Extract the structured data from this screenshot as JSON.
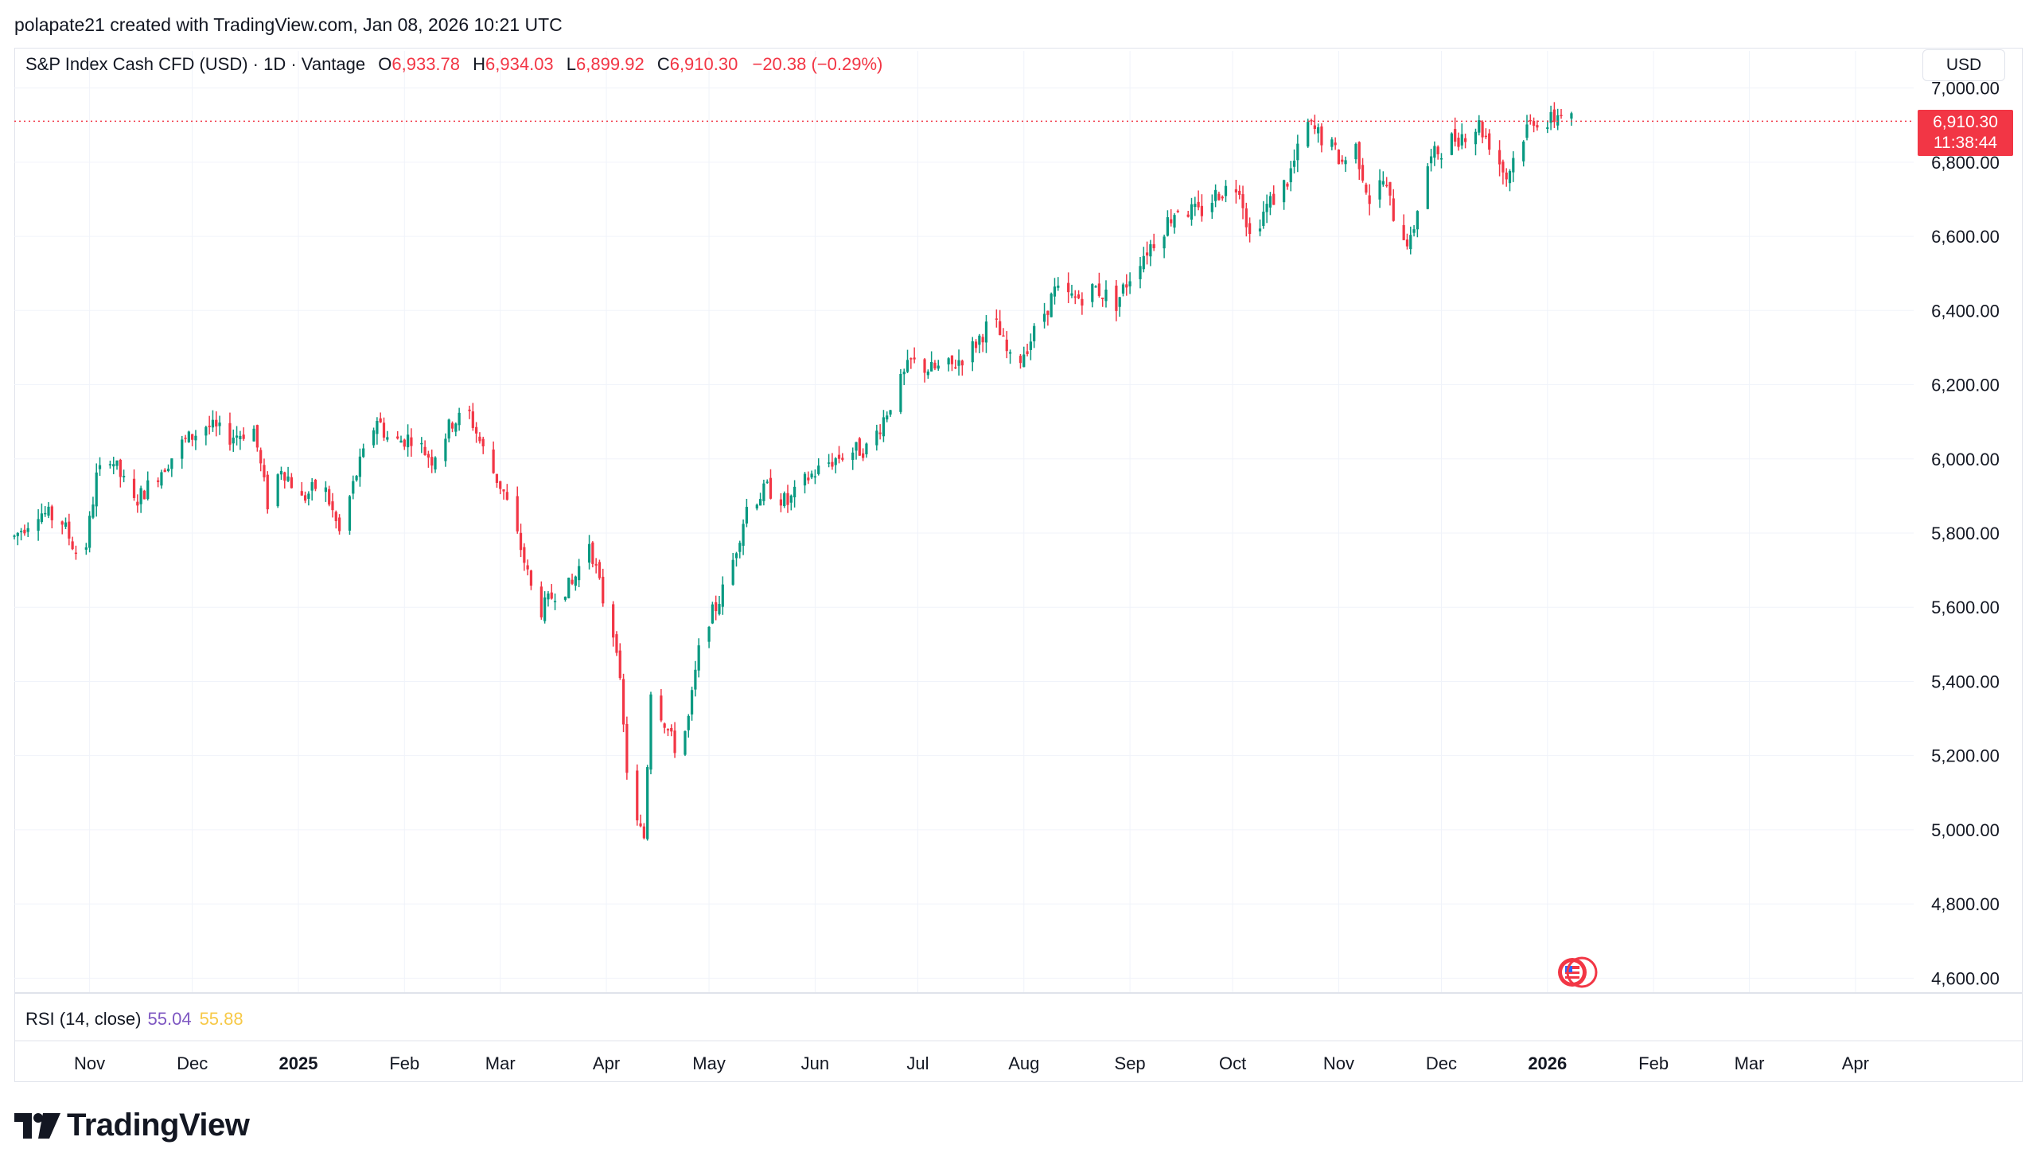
{
  "caption": "polapate21 created with TradingView.com, Jan 08, 2026 10:21 UTC",
  "legend": {
    "symbol": "S&P Index Cash CFD (USD) · 1D · Vantage",
    "open_label": "O",
    "open": "6,933.78",
    "high_label": "H",
    "high": "6,934.03",
    "low_label": "L",
    "low": "6,899.92",
    "close_label": "C",
    "close": "6,910.30",
    "change": "−20.38 (−0.29%)"
  },
  "currency": "USD",
  "last_price": {
    "price": "6,910.30",
    "countdown": "11:38:44"
  },
  "rsi": {
    "label": "RSI (14, close)",
    "value1": "55.04",
    "value2": "55.88"
  },
  "brand": "TradingView",
  "colors": {
    "up": "#089981",
    "down": "#f23645",
    "grid": "#f0f3fa",
    "text": "#131722"
  },
  "chart_data": {
    "type": "candlestick",
    "y_axis": {
      "min": 4560,
      "max": 7100,
      "ticks": [
        7000,
        6800,
        6600,
        6400,
        6200,
        6000,
        5800,
        5600,
        5400,
        5200,
        5000,
        4800,
        4600
      ],
      "tick_labels": [
        "7,000.00",
        "6,800.00",
        "6,600.00",
        "6,400.00",
        "6,200.00",
        "6,000.00",
        "5,800.00",
        "5,600.00",
        "5,400.00",
        "5,200.00",
        "5,000.00",
        "4,800.00",
        "4,600.00"
      ]
    },
    "x_axis": {
      "labels": [
        {
          "text": "Nov",
          "bold": false,
          "day": 22
        },
        {
          "text": "Dec",
          "bold": false,
          "day": 52
        },
        {
          "text": "2025",
          "bold": true,
          "day": 83
        },
        {
          "text": "Feb",
          "bold": false,
          "day": 114
        },
        {
          "text": "Mar",
          "bold": false,
          "day": 142
        },
        {
          "text": "Apr",
          "bold": false,
          "day": 173
        },
        {
          "text": "May",
          "bold": false,
          "day": 203
        },
        {
          "text": "Jun",
          "bold": false,
          "day": 234
        },
        {
          "text": "Jul",
          "bold": false,
          "day": 264
        },
        {
          "text": "Aug",
          "bold": false,
          "day": 295
        },
        {
          "text": "Sep",
          "bold": false,
          "day": 326
        },
        {
          "text": "Oct",
          "bold": false,
          "day": 356
        },
        {
          "text": "Nov",
          "bold": false,
          "day": 387
        },
        {
          "text": "Dec",
          "bold": false,
          "day": 417
        },
        {
          "text": "2026",
          "bold": true,
          "day": 448
        },
        {
          "text": "Feb",
          "bold": false,
          "day": 479
        },
        {
          "text": "Mar",
          "bold": false,
          "day": 507
        },
        {
          "text": "Apr",
          "bold": false,
          "day": 538
        }
      ]
    },
    "closes": [
      {
        "day": 0,
        "close": 5790
      },
      {
        "day": 7,
        "close": 5860
      },
      {
        "day": 14,
        "close": 5830
      },
      {
        "day": 20,
        "close": 5710
      },
      {
        "day": 24,
        "close": 5950
      },
      {
        "day": 28,
        "close": 6010
      },
      {
        "day": 35,
        "close": 5880
      },
      {
        "day": 42,
        "close": 5960
      },
      {
        "day": 49,
        "close": 6040
      },
      {
        "day": 56,
        "close": 6090
      },
      {
        "day": 63,
        "close": 6060
      },
      {
        "day": 70,
        "close": 6080
      },
      {
        "day": 74,
        "close": 5880
      },
      {
        "day": 78,
        "close": 5980
      },
      {
        "day": 84,
        "close": 5890
      },
      {
        "day": 90,
        "close": 5940
      },
      {
        "day": 95,
        "close": 5800
      },
      {
        "day": 100,
        "close": 5960
      },
      {
        "day": 106,
        "close": 6110
      },
      {
        "day": 110,
        "close": 6040
      },
      {
        "day": 116,
        "close": 6060
      },
      {
        "day": 122,
        "close": 6000
      },
      {
        "day": 128,
        "close": 6100
      },
      {
        "day": 133,
        "close": 6120
      },
      {
        "day": 138,
        "close": 6000
      },
      {
        "day": 143,
        "close": 5910
      },
      {
        "day": 148,
        "close": 5760
      },
      {
        "day": 153,
        "close": 5580
      },
      {
        "day": 158,
        "close": 5640
      },
      {
        "day": 163,
        "close": 5660
      },
      {
        "day": 168,
        "close": 5780
      },
      {
        "day": 172,
        "close": 5620
      },
      {
        "day": 176,
        "close": 5500
      },
      {
        "day": 180,
        "close": 5050
      },
      {
        "day": 184,
        "close": 4980
      },
      {
        "day": 186,
        "close": 5380
      },
      {
        "day": 190,
        "close": 5290
      },
      {
        "day": 194,
        "close": 5200
      },
      {
        "day": 197,
        "close": 5300
      },
      {
        "day": 201,
        "close": 5540
      },
      {
        "day": 205,
        "close": 5600
      },
      {
        "day": 209,
        "close": 5690
      },
      {
        "day": 214,
        "close": 5870
      },
      {
        "day": 220,
        "close": 5920
      },
      {
        "day": 226,
        "close": 5880
      },
      {
        "day": 232,
        "close": 5950
      },
      {
        "day": 238,
        "close": 5990
      },
      {
        "day": 244,
        "close": 6020
      },
      {
        "day": 250,
        "close": 6030
      },
      {
        "day": 256,
        "close": 6150
      },
      {
        "day": 262,
        "close": 6260
      },
      {
        "day": 268,
        "close": 6240
      },
      {
        "day": 274,
        "close": 6250
      },
      {
        "day": 280,
        "close": 6300
      },
      {
        "day": 286,
        "close": 6380
      },
      {
        "day": 292,
        "close": 6240
      },
      {
        "day": 298,
        "close": 6340
      },
      {
        "day": 304,
        "close": 6450
      },
      {
        "day": 310,
        "close": 6430
      },
      {
        "day": 316,
        "close": 6460
      },
      {
        "day": 322,
        "close": 6420
      },
      {
        "day": 328,
        "close": 6530
      },
      {
        "day": 334,
        "close": 6600
      },
      {
        "day": 340,
        "close": 6680
      },
      {
        "day": 346,
        "close": 6660
      },
      {
        "day": 352,
        "close": 6720
      },
      {
        "day": 358,
        "close": 6740
      },
      {
        "day": 361,
        "close": 6600
      },
      {
        "day": 366,
        "close": 6680
      },
      {
        "day": 372,
        "close": 6750
      },
      {
        "day": 378,
        "close": 6900
      },
      {
        "day": 384,
        "close": 6850
      },
      {
        "day": 388,
        "close": 6800
      },
      {
        "day": 392,
        "close": 6840
      },
      {
        "day": 396,
        "close": 6700
      },
      {
        "day": 400,
        "close": 6750
      },
      {
        "day": 404,
        "close": 6630
      },
      {
        "day": 408,
        "close": 6580
      },
      {
        "day": 412,
        "close": 6780
      },
      {
        "day": 416,
        "close": 6830
      },
      {
        "day": 420,
        "close": 6860
      },
      {
        "day": 424,
        "close": 6880
      },
      {
        "day": 428,
        "close": 6900
      },
      {
        "day": 432,
        "close": 6840
      },
      {
        "day": 436,
        "close": 6760
      },
      {
        "day": 440,
        "close": 6860
      },
      {
        "day": 444,
        "close": 6920
      },
      {
        "day": 448,
        "close": 6900
      },
      {
        "day": 452,
        "close": 6940
      },
      {
        "day": 455,
        "close": 6910
      }
    ],
    "last_price_line": 6910.3
  }
}
